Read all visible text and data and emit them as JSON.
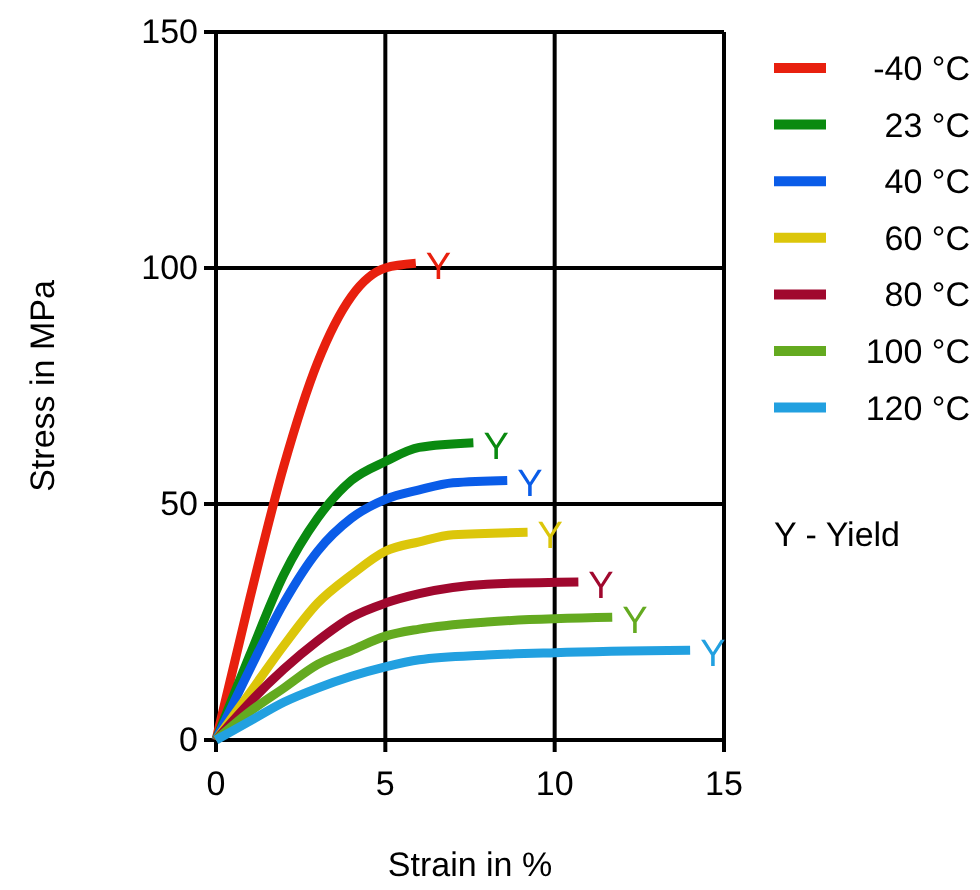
{
  "chart_data": {
    "type": "line",
    "xlabel": "Strain in %",
    "ylabel": "Stress in MPa",
    "xlim": [
      0,
      15
    ],
    "ylim": [
      0,
      150
    ],
    "xticks": [
      0,
      5,
      10,
      15
    ],
    "yticks": [
      0,
      50,
      100,
      150
    ],
    "grid": true,
    "legend": "right",
    "marker": "none",
    "line_style": "solid",
    "series": [
      {
        "name": "-40 °C",
        "color": "#e8200e",
        "x": [
          0,
          1,
          2,
          3,
          4,
          5,
          5.9
        ],
        "values": [
          0,
          30,
          58,
          80,
          94,
          100,
          101
        ]
      },
      {
        "name": "23 °C",
        "color": "#0a8a10",
        "x": [
          0,
          1,
          2,
          3,
          4,
          5,
          6,
          7.6
        ],
        "values": [
          0,
          18,
          35,
          47,
          55,
          59,
          62,
          63
        ]
      },
      {
        "name": "40 °C",
        "color": "#0a5ce8",
        "x": [
          0,
          1,
          2,
          3,
          4,
          5,
          6,
          7,
          8.6
        ],
        "values": [
          0,
          15,
          29,
          40,
          47,
          51,
          53,
          54.5,
          55
        ]
      },
      {
        "name": "60 °C",
        "color": "#dcc60a",
        "x": [
          0,
          1,
          2,
          3,
          4,
          5,
          6,
          7,
          9.2
        ],
        "values": [
          0,
          10,
          20,
          29,
          35,
          40,
          42,
          43.5,
          44
        ]
      },
      {
        "name": "80 °C",
        "color": "#a0082e",
        "x": [
          0,
          1,
          2,
          3,
          4,
          5,
          6,
          8,
          10.7
        ],
        "values": [
          0,
          8,
          15,
          21,
          26,
          29,
          31,
          33,
          33.5
        ]
      },
      {
        "name": "100 °C",
        "color": "#64aa20",
        "x": [
          0,
          1,
          2,
          3,
          4,
          5,
          6,
          8,
          11.7
        ],
        "values": [
          0,
          6,
          11,
          16,
          19,
          22,
          23.5,
          25,
          26
        ]
      },
      {
        "name": "120 °C",
        "color": "#22a0e0",
        "x": [
          0,
          1,
          2,
          3,
          4,
          5,
          6,
          8,
          10,
          14
        ],
        "values": [
          0,
          4,
          8,
          11,
          13.5,
          15.5,
          17,
          18,
          18.5,
          19
        ]
      }
    ],
    "annotations": [
      {
        "text": "Y",
        "x": 5.9,
        "y": 101
      },
      {
        "text": "Y",
        "x": 7.6,
        "y": 63
      },
      {
        "text": "Y",
        "x": 8.6,
        "y": 55
      },
      {
        "text": "Y",
        "x": 9.2,
        "y": 44
      },
      {
        "text": "Y",
        "x": 10.7,
        "y": 33.5
      },
      {
        "text": "Y",
        "x": 11.7,
        "y": 26
      },
      {
        "text": "Y",
        "x": 14,
        "y": 19
      },
      "Y - Yield"
    ]
  }
}
